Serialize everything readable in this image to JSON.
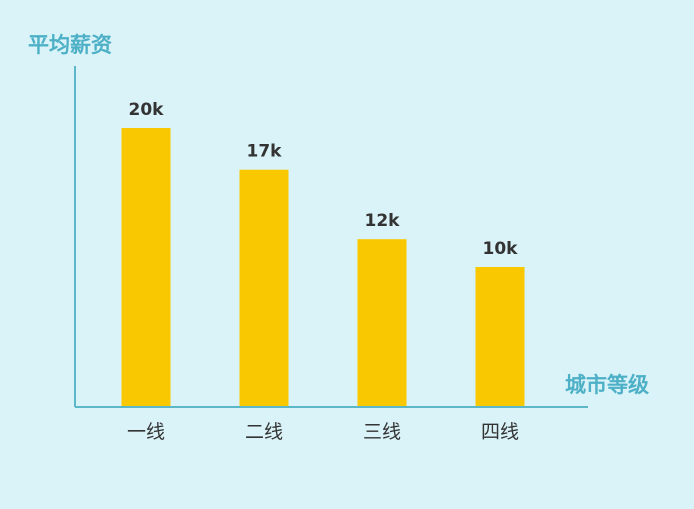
{
  "chart_data": {
    "type": "bar",
    "ylabel": "平均薪资",
    "xlabel": "城市等级",
    "categories": [
      "一线",
      "二线",
      "三线",
      "四线"
    ],
    "values": [
      20,
      17,
      12,
      10
    ],
    "value_labels": [
      "20k",
      "17k",
      "12k",
      "10k"
    ],
    "unit": "k",
    "ylim": [
      0,
      26
    ],
    "grid": false,
    "legend": "none"
  },
  "colors": {
    "background": "#d9f3f8",
    "bar": "#fac800",
    "axis": "#5cb8c8",
    "axis_title": "#4db0c6",
    "value_label": "#333333",
    "tick_label": "#333333"
  }
}
